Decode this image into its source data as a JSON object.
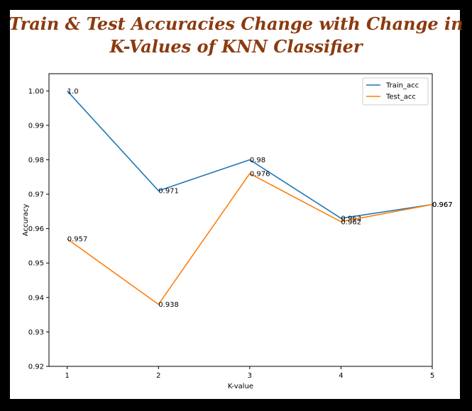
{
  "chart_data": {
    "type": "line",
    "title": "Train & Test Accuracies Change with Change in K-Values of KNN Classifier",
    "title_lines": [
      "Train & Test Accuracies Change with Change in",
      "K-Values of KNN Classifier"
    ],
    "xlabel": "K-value",
    "ylabel": "Accuracy",
    "x": [
      1,
      2,
      3,
      4,
      5
    ],
    "xticks": [
      "1",
      "2",
      "3",
      "4",
      "5"
    ],
    "xlim": [
      1,
      5
    ],
    "ylim": [
      0.92,
      1.005
    ],
    "yticks": [
      "0.92",
      "0.93",
      "0.94",
      "0.95",
      "0.96",
      "0.97",
      "0.98",
      "0.99",
      "1.00"
    ],
    "grid": false,
    "legend_position": "top-right",
    "series": [
      {
        "name": "Train_acc",
        "color": "#1f77b4",
        "values": [
          1.0,
          0.971,
          0.98,
          0.963,
          0.967
        ],
        "labels": [
          "1.0",
          "0.971",
          "0.98",
          "0.963",
          "0.967"
        ]
      },
      {
        "name": "Test_acc",
        "color": "#ff7f0e",
        "values": [
          0.957,
          0.938,
          0.976,
          0.962,
          0.967
        ],
        "labels": [
          "0.957",
          "0.938",
          "0.976",
          "0.962",
          "0.967"
        ]
      }
    ]
  }
}
